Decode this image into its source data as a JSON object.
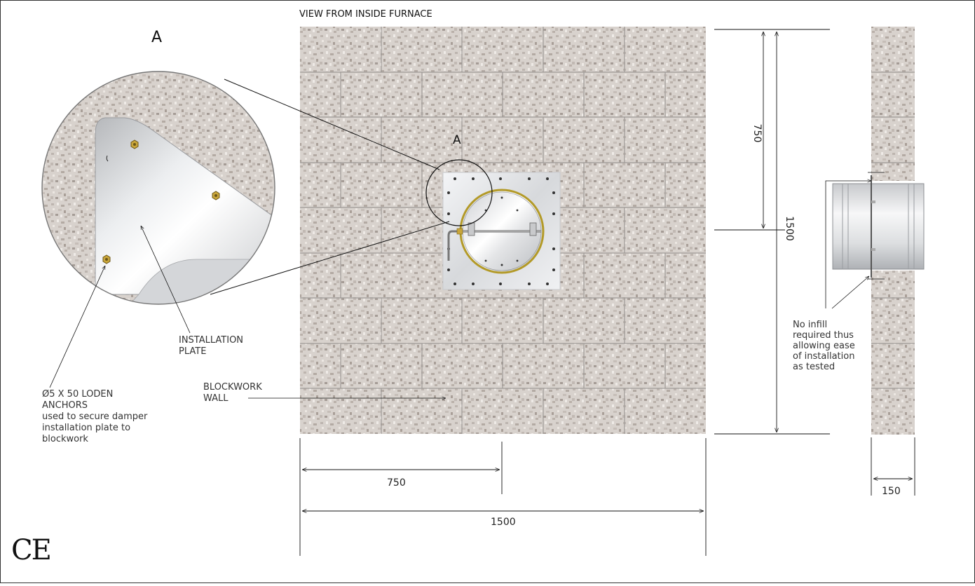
{
  "view_title": "VIEW FROM INSIDE FURNACE",
  "detail_marker": "A",
  "labels": {
    "installation_plate": [
      "INSTALLATION",
      "PLATE"
    ],
    "blockwork_wall": [
      "BLOCKWORK",
      "WALL"
    ],
    "anchors": [
      "Ø5 X 50 LODEN",
      "ANCHORS",
      "used to secure damper",
      "installation plate to",
      "blockwork"
    ],
    "infill_note": [
      "No infill",
      "required thus",
      "allowing ease",
      "of installation",
      "as tested"
    ]
  },
  "dimensions": {
    "top_half": "750",
    "overall_height": "1500",
    "bottom_half_width": "750",
    "overall_width": "1500",
    "wall_thickness": "150"
  },
  "ce_mark": "CE",
  "colors": {
    "block": "#d9d3cf",
    "mortar": "#a9a6a4",
    "plate": "#e6e7e9",
    "ring": "#b8a02c",
    "line": "#111111"
  }
}
